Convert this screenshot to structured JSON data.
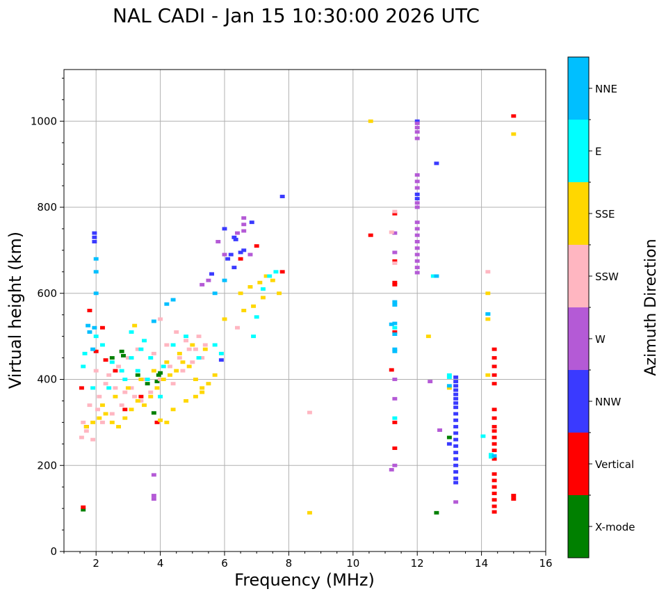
{
  "chart_data": {
    "type": "scatter",
    "title": "NAL CADI - Jan 15 10:30:00 2026 UTC",
    "xlabel": "Frequency (MHz)",
    "ylabel": "Virtual height (km)",
    "xlim": [
      1,
      16
    ],
    "ylim": [
      0,
      1120
    ],
    "xticks": [
      2,
      4,
      6,
      8,
      10,
      12,
      14,
      16
    ],
    "yticks": [
      0,
      200,
      400,
      600,
      800,
      1000
    ],
    "grid": true,
    "colorbar": {
      "label": "Azimuth Direction",
      "categories": [
        {
          "name": "X-mode",
          "color": "#008000"
        },
        {
          "name": "Vertical",
          "color": "#ff0000"
        },
        {
          "name": "NNW",
          "color": "#3a3aff"
        },
        {
          "name": "W",
          "color": "#b45ad6"
        },
        {
          "name": "SSW",
          "color": "#ffb6c1"
        },
        {
          "name": "SSE",
          "color": "#ffd700"
        },
        {
          "name": "E",
          "color": "#00ffff"
        },
        {
          "name": "NNE",
          "color": "#00bfff"
        }
      ]
    },
    "series": [
      {
        "name": "X-mode",
        "points": [
          [
            2.8,
            465
          ],
          [
            2.85,
            455
          ],
          [
            3.8,
            322
          ],
          [
            3.9,
            395
          ],
          [
            3.95,
            410
          ],
          [
            4.0,
            415
          ],
          [
            12.6,
            90
          ],
          [
            3.3,
            410
          ],
          [
            2.5,
            450
          ],
          [
            13.0,
            265
          ],
          [
            1.6,
            97
          ],
          [
            3.6,
            390
          ]
        ]
      },
      {
        "name": "Vertical",
        "points": [
          [
            2.0,
            465
          ],
          [
            2.2,
            520
          ],
          [
            1.8,
            560
          ],
          [
            2.3,
            445
          ],
          [
            2.6,
            420
          ],
          [
            3.4,
            360
          ],
          [
            3.9,
            300
          ],
          [
            1.55,
            380
          ],
          [
            1.7,
            290
          ],
          [
            2.9,
            330
          ],
          [
            7.0,
            710
          ],
          [
            6.5,
            680
          ],
          [
            11.3,
            620
          ],
          [
            11.3,
            625
          ],
          [
            11.3,
            510
          ],
          [
            11.3,
            300
          ],
          [
            11.3,
            240
          ],
          [
            11.3,
            785
          ],
          [
            11.2,
            422
          ],
          [
            10.55,
            735
          ],
          [
            14.4,
            470
          ],
          [
            14.4,
            450
          ],
          [
            14.4,
            430
          ],
          [
            14.4,
            410
          ],
          [
            14.4,
            390
          ],
          [
            14.4,
            330
          ],
          [
            14.4,
            310
          ],
          [
            14.4,
            290
          ],
          [
            14.4,
            280
          ],
          [
            14.4,
            265
          ],
          [
            14.4,
            250
          ],
          [
            14.4,
            235
          ],
          [
            14.4,
            215
          ],
          [
            14.4,
            180
          ],
          [
            14.4,
            165
          ],
          [
            14.4,
            150
          ],
          [
            14.4,
            135
          ],
          [
            14.4,
            120
          ],
          [
            14.4,
            105
          ],
          [
            14.4,
            92
          ],
          [
            15.0,
            1012
          ],
          [
            15.0,
            130
          ],
          [
            15.0,
            122
          ],
          [
            11.3,
            675
          ],
          [
            7.8,
            650
          ],
          [
            1.6,
            103
          ]
        ]
      },
      {
        "name": "NNW",
        "points": [
          [
            6.3,
            730
          ],
          [
            6.35,
            725
          ],
          [
            6.5,
            695
          ],
          [
            6.6,
            700
          ],
          [
            6.2,
            690
          ],
          [
            6.1,
            680
          ],
          [
            6.3,
            660
          ],
          [
            5.6,
            645
          ],
          [
            1.95,
            740
          ],
          [
            1.95,
            730
          ],
          [
            1.95,
            720
          ],
          [
            12.0,
            1000
          ],
          [
            12.0,
            830
          ],
          [
            12.0,
            820
          ],
          [
            12.6,
            902
          ],
          [
            13.2,
            405
          ],
          [
            13.2,
            395
          ],
          [
            13.2,
            385
          ],
          [
            13.2,
            375
          ],
          [
            13.2,
            365
          ],
          [
            13.2,
            355
          ],
          [
            13.2,
            345
          ],
          [
            13.2,
            335
          ],
          [
            13.2,
            320
          ],
          [
            13.2,
            305
          ],
          [
            13.2,
            290
          ],
          [
            13.2,
            275
          ],
          [
            13.2,
            260
          ],
          [
            13.2,
            245
          ],
          [
            13.2,
            230
          ],
          [
            13.2,
            215
          ],
          [
            13.2,
            200
          ],
          [
            13.2,
            185
          ],
          [
            13.2,
            170
          ],
          [
            13.2,
            160
          ],
          [
            13.0,
            250
          ],
          [
            7.8,
            825
          ],
          [
            5.9,
            445
          ],
          [
            6.85,
            765
          ],
          [
            6.0,
            750
          ]
        ]
      },
      {
        "name": "W",
        "points": [
          [
            12.0,
            995
          ],
          [
            12.0,
            985
          ],
          [
            12.0,
            975
          ],
          [
            12.0,
            960
          ],
          [
            12.0,
            875
          ],
          [
            12.0,
            860
          ],
          [
            12.0,
            845
          ],
          [
            12.0,
            810
          ],
          [
            12.0,
            800
          ],
          [
            12.0,
            765
          ],
          [
            12.0,
            750
          ],
          [
            12.0,
            735
          ],
          [
            12.0,
            720
          ],
          [
            12.0,
            705
          ],
          [
            12.0,
            690
          ],
          [
            12.0,
            675
          ],
          [
            12.0,
            660
          ],
          [
            12.0,
            648
          ],
          [
            11.3,
            740
          ],
          [
            11.3,
            695
          ],
          [
            11.3,
            355
          ],
          [
            11.3,
            400
          ],
          [
            11.3,
            200
          ],
          [
            11.2,
            190
          ],
          [
            12.4,
            395
          ],
          [
            12.7,
            282
          ],
          [
            13.2,
            115
          ],
          [
            3.8,
            178
          ],
          [
            3.8,
            130
          ],
          [
            3.8,
            122
          ],
          [
            6.6,
            775
          ],
          [
            6.6,
            760
          ],
          [
            6.6,
            745
          ],
          [
            6.4,
            740
          ],
          [
            5.5,
            630
          ],
          [
            5.8,
            720
          ],
          [
            6.0,
            690
          ],
          [
            5.3,
            620
          ],
          [
            6.8,
            690
          ]
        ]
      },
      {
        "name": "SSW",
        "points": [
          [
            2.0,
            420
          ],
          [
            2.3,
            390
          ],
          [
            2.6,
            380
          ],
          [
            2.9,
            370
          ],
          [
            3.2,
            360
          ],
          [
            3.5,
            400
          ],
          [
            3.8,
            460
          ],
          [
            4.2,
            480
          ],
          [
            4.5,
            510
          ],
          [
            4.8,
            490
          ],
          [
            5.1,
            470
          ],
          [
            5.3,
            450
          ],
          [
            1.6,
            300
          ],
          [
            1.8,
            340
          ],
          [
            2.2,
            300
          ],
          [
            2.5,
            320
          ],
          [
            2.8,
            340
          ],
          [
            3.1,
            380
          ],
          [
            3.4,
            350
          ],
          [
            3.7,
            370
          ],
          [
            4.0,
            400
          ],
          [
            4.3,
            430
          ],
          [
            4.6,
            450
          ],
          [
            4.9,
            470
          ],
          [
            5.2,
            500
          ],
          [
            5.4,
            480
          ],
          [
            1.55,
            265
          ],
          [
            1.7,
            280
          ],
          [
            2.1,
            360
          ],
          [
            2.4,
            410
          ],
          [
            2.7,
            430
          ],
          [
            3.0,
            450
          ],
          [
            4.4,
            390
          ],
          [
            4.7,
            420
          ],
          [
            5.0,
            440
          ],
          [
            11.3,
            790
          ],
          [
            11.3,
            670
          ],
          [
            11.2,
            742
          ],
          [
            14.2,
            650
          ],
          [
            8.65,
            323
          ],
          [
            6.4,
            520
          ],
          [
            4.0,
            540
          ],
          [
            3.3,
            470
          ],
          [
            1.9,
            260
          ],
          [
            2.05,
            330
          ]
        ]
      },
      {
        "name": "SSE",
        "points": [
          [
            1.7,
            290
          ],
          [
            1.9,
            300
          ],
          [
            2.1,
            310
          ],
          [
            2.3,
            320
          ],
          [
            2.5,
            300
          ],
          [
            2.7,
            290
          ],
          [
            2.9,
            310
          ],
          [
            3.1,
            330
          ],
          [
            3.3,
            350
          ],
          [
            3.5,
            340
          ],
          [
            3.7,
            360
          ],
          [
            3.9,
            380
          ],
          [
            4.1,
            400
          ],
          [
            4.3,
            410
          ],
          [
            4.5,
            420
          ],
          [
            4.7,
            440
          ],
          [
            4.9,
            430
          ],
          [
            5.1,
            400
          ],
          [
            5.3,
            380
          ],
          [
            5.5,
            390
          ],
          [
            5.7,
            410
          ],
          [
            2.2,
            340
          ],
          [
            2.6,
            360
          ],
          [
            3.0,
            380
          ],
          [
            3.4,
            400
          ],
          [
            3.8,
            420
          ],
          [
            4.2,
            440
          ],
          [
            4.6,
            460
          ],
          [
            5.0,
            480
          ],
          [
            5.4,
            470
          ],
          [
            4.8,
            350
          ],
          [
            5.1,
            360
          ],
          [
            5.3,
            370
          ],
          [
            4.4,
            330
          ],
          [
            4.0,
            305
          ],
          [
            4.2,
            300
          ],
          [
            6.8,
            615
          ],
          [
            7.1,
            625
          ],
          [
            7.3,
            640
          ],
          [
            7.5,
            630
          ],
          [
            7.7,
            600
          ],
          [
            6.9,
            570
          ],
          [
            7.2,
            590
          ],
          [
            10.55,
            1000
          ],
          [
            12.35,
            500
          ],
          [
            13.0,
            380
          ],
          [
            14.2,
            600
          ],
          [
            14.2,
            410
          ],
          [
            14.2,
            540
          ],
          [
            15.0,
            970
          ],
          [
            8.65,
            90
          ],
          [
            3.2,
            525
          ],
          [
            6.0,
            540
          ],
          [
            6.6,
            560
          ],
          [
            6.5,
            600
          ]
        ]
      },
      {
        "name": "E",
        "points": [
          [
            1.6,
            430
          ],
          [
            1.65,
            460
          ],
          [
            2.0,
            500
          ],
          [
            2.2,
            480
          ],
          [
            2.5,
            440
          ],
          [
            2.8,
            420
          ],
          [
            3.1,
            450
          ],
          [
            3.4,
            470
          ],
          [
            3.7,
            450
          ],
          [
            4.1,
            430
          ],
          [
            4.4,
            480
          ],
          [
            4.8,
            500
          ],
          [
            5.2,
            450
          ],
          [
            2.4,
            380
          ],
          [
            2.9,
            400
          ],
          [
            3.3,
            420
          ],
          [
            3.6,
            400
          ],
          [
            4.0,
            360
          ],
          [
            3.1,
            510
          ],
          [
            3.5,
            490
          ],
          [
            6.9,
            500
          ],
          [
            7.0,
            545
          ],
          [
            7.2,
            610
          ],
          [
            7.4,
            640
          ],
          [
            7.6,
            650
          ],
          [
            13.0,
            410
          ],
          [
            13.0,
            405
          ],
          [
            12.5,
            640
          ],
          [
            14.05,
            268
          ],
          [
            14.3,
            225
          ],
          [
            14.3,
            220
          ],
          [
            14.2,
            552
          ],
          [
            11.3,
            520
          ],
          [
            11.3,
            310
          ],
          [
            1.9,
            380
          ],
          [
            5.7,
            480
          ],
          [
            5.9,
            460
          ]
        ]
      },
      {
        "name": "NNE",
        "points": [
          [
            1.75,
            525
          ],
          [
            1.8,
            510
          ],
          [
            1.9,
            470
          ],
          [
            1.95,
            520
          ],
          [
            2.0,
            600
          ],
          [
            2.0,
            650
          ],
          [
            2.0,
            680
          ],
          [
            11.3,
            530
          ],
          [
            11.3,
            470
          ],
          [
            11.3,
            465
          ],
          [
            11.3,
            580
          ],
          [
            11.3,
            573
          ],
          [
            11.2,
            528
          ],
          [
            11.3,
            505
          ],
          [
            12.6,
            640
          ],
          [
            13.0,
            385
          ],
          [
            14.2,
            552
          ],
          [
            14.4,
            222
          ],
          [
            5.7,
            600
          ],
          [
            3.8,
            535
          ],
          [
            4.4,
            585
          ],
          [
            4.2,
            575
          ],
          [
            6.0,
            630
          ]
        ]
      }
    ]
  }
}
